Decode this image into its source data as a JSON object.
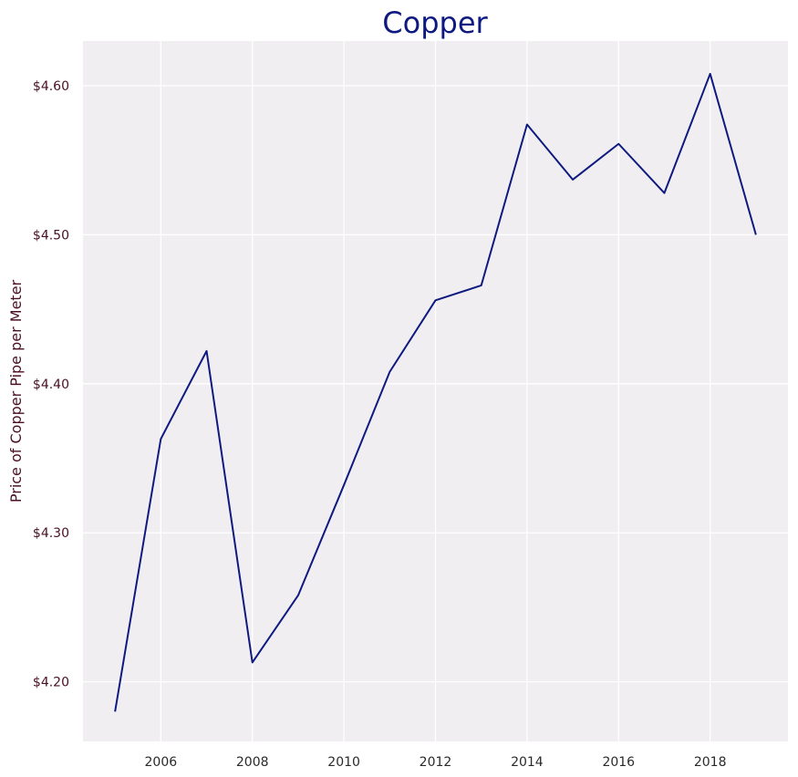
{
  "chart_data": {
    "type": "line",
    "title": "Copper",
    "xlabel": "",
    "ylabel": "Price of Copper Pipe per Meter",
    "x": [
      2005,
      2006,
      2007,
      2008,
      2009,
      2010,
      2011,
      2012,
      2013,
      2014,
      2015,
      2016,
      2017,
      2018,
      2019
    ],
    "series": [
      {
        "values": [
          4.18,
          4.363,
          4.422,
          4.213,
          4.258,
          4.332,
          4.408,
          4.456,
          4.466,
          4.574,
          4.537,
          4.561,
          4.528,
          4.608,
          4.5
        ]
      }
    ],
    "xticks": [
      2006,
      2008,
      2010,
      2012,
      2014,
      2016,
      2018
    ],
    "yticks": [
      4.2,
      4.3,
      4.4,
      4.5,
      4.6
    ],
    "ytick_labels": [
      "$4.20",
      "$4.30",
      "$4.40",
      "$4.50",
      "$4.60"
    ],
    "xlim": [
      2004.3,
      2019.7
    ],
    "ylim": [
      4.16,
      4.63
    ],
    "grid": true,
    "colors": {
      "line": "#0f1a80",
      "title": "#0f1a80",
      "ytick_text": "#4a0f25",
      "ylabel_text": "#4a0f25",
      "xtick_text": "#2a2a2a",
      "plot_bg": "#f0eef0",
      "grid": "#ffffff"
    }
  }
}
